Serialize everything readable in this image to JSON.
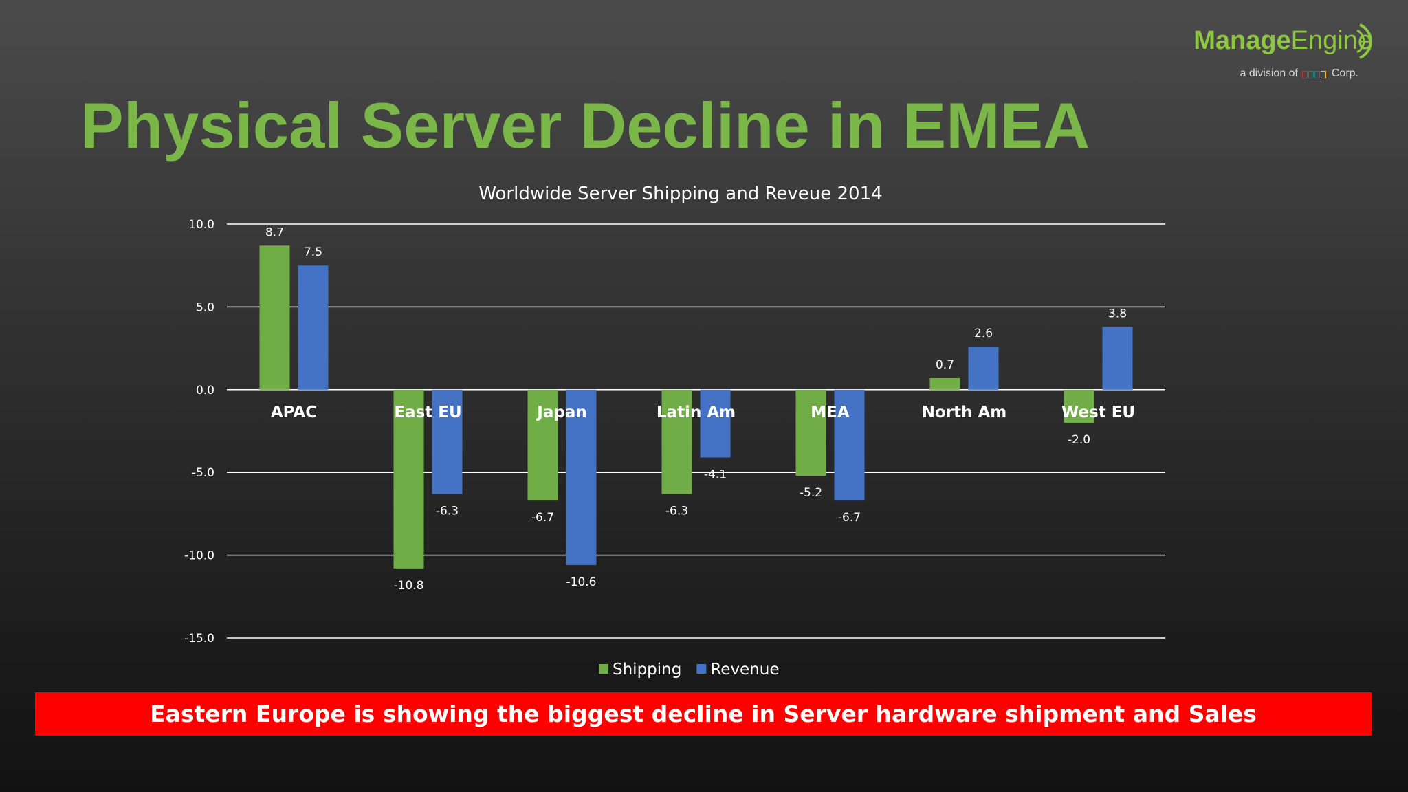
{
  "slide": {
    "title": "Physical Server Decline in EMEA",
    "callout": "Eastern Europe is showing the biggest decline in Server hardware shipment and Sales"
  },
  "logo": {
    "brand_first": "Manage",
    "brand_second": "Engine",
    "division_prefix": "a division of",
    "division_company": "ZOHO",
    "division_suffix": "Corp."
  },
  "colors": {
    "title": "#7ab648",
    "shipping": "#70ad47",
    "revenue": "#4472c4",
    "callout_bg": "#ff0000",
    "grid": "#ffffff",
    "text": "#ffffff",
    "logo_green": "#8dc63f"
  },
  "chart_data": {
    "type": "bar",
    "title": "Worldwide Server Shipping and Reveue 2014",
    "categories": [
      "APAC",
      "East EU",
      "Japan",
      "Latin Am",
      "MEA",
      "North Am",
      "West EU"
    ],
    "series": [
      {
        "name": "Shipping",
        "color": "#70ad47",
        "values": [
          8.7,
          -10.8,
          -6.7,
          -6.3,
          -5.2,
          0.7,
          -2.0
        ]
      },
      {
        "name": "Revenue",
        "color": "#4472c4",
        "values": [
          7.5,
          -6.3,
          -10.6,
          -4.1,
          -6.7,
          2.6,
          3.8
        ]
      }
    ],
    "ylim": [
      -15,
      10
    ],
    "yticks": [
      10,
      5,
      0,
      -5,
      -10,
      -15
    ],
    "ytick_labels": [
      "10.0",
      "5.0",
      "0.0",
      "-5.0",
      "-10.0",
      "-15.0"
    ],
    "grid": true,
    "legend": "bottom",
    "xlabel": "",
    "ylabel": ""
  }
}
